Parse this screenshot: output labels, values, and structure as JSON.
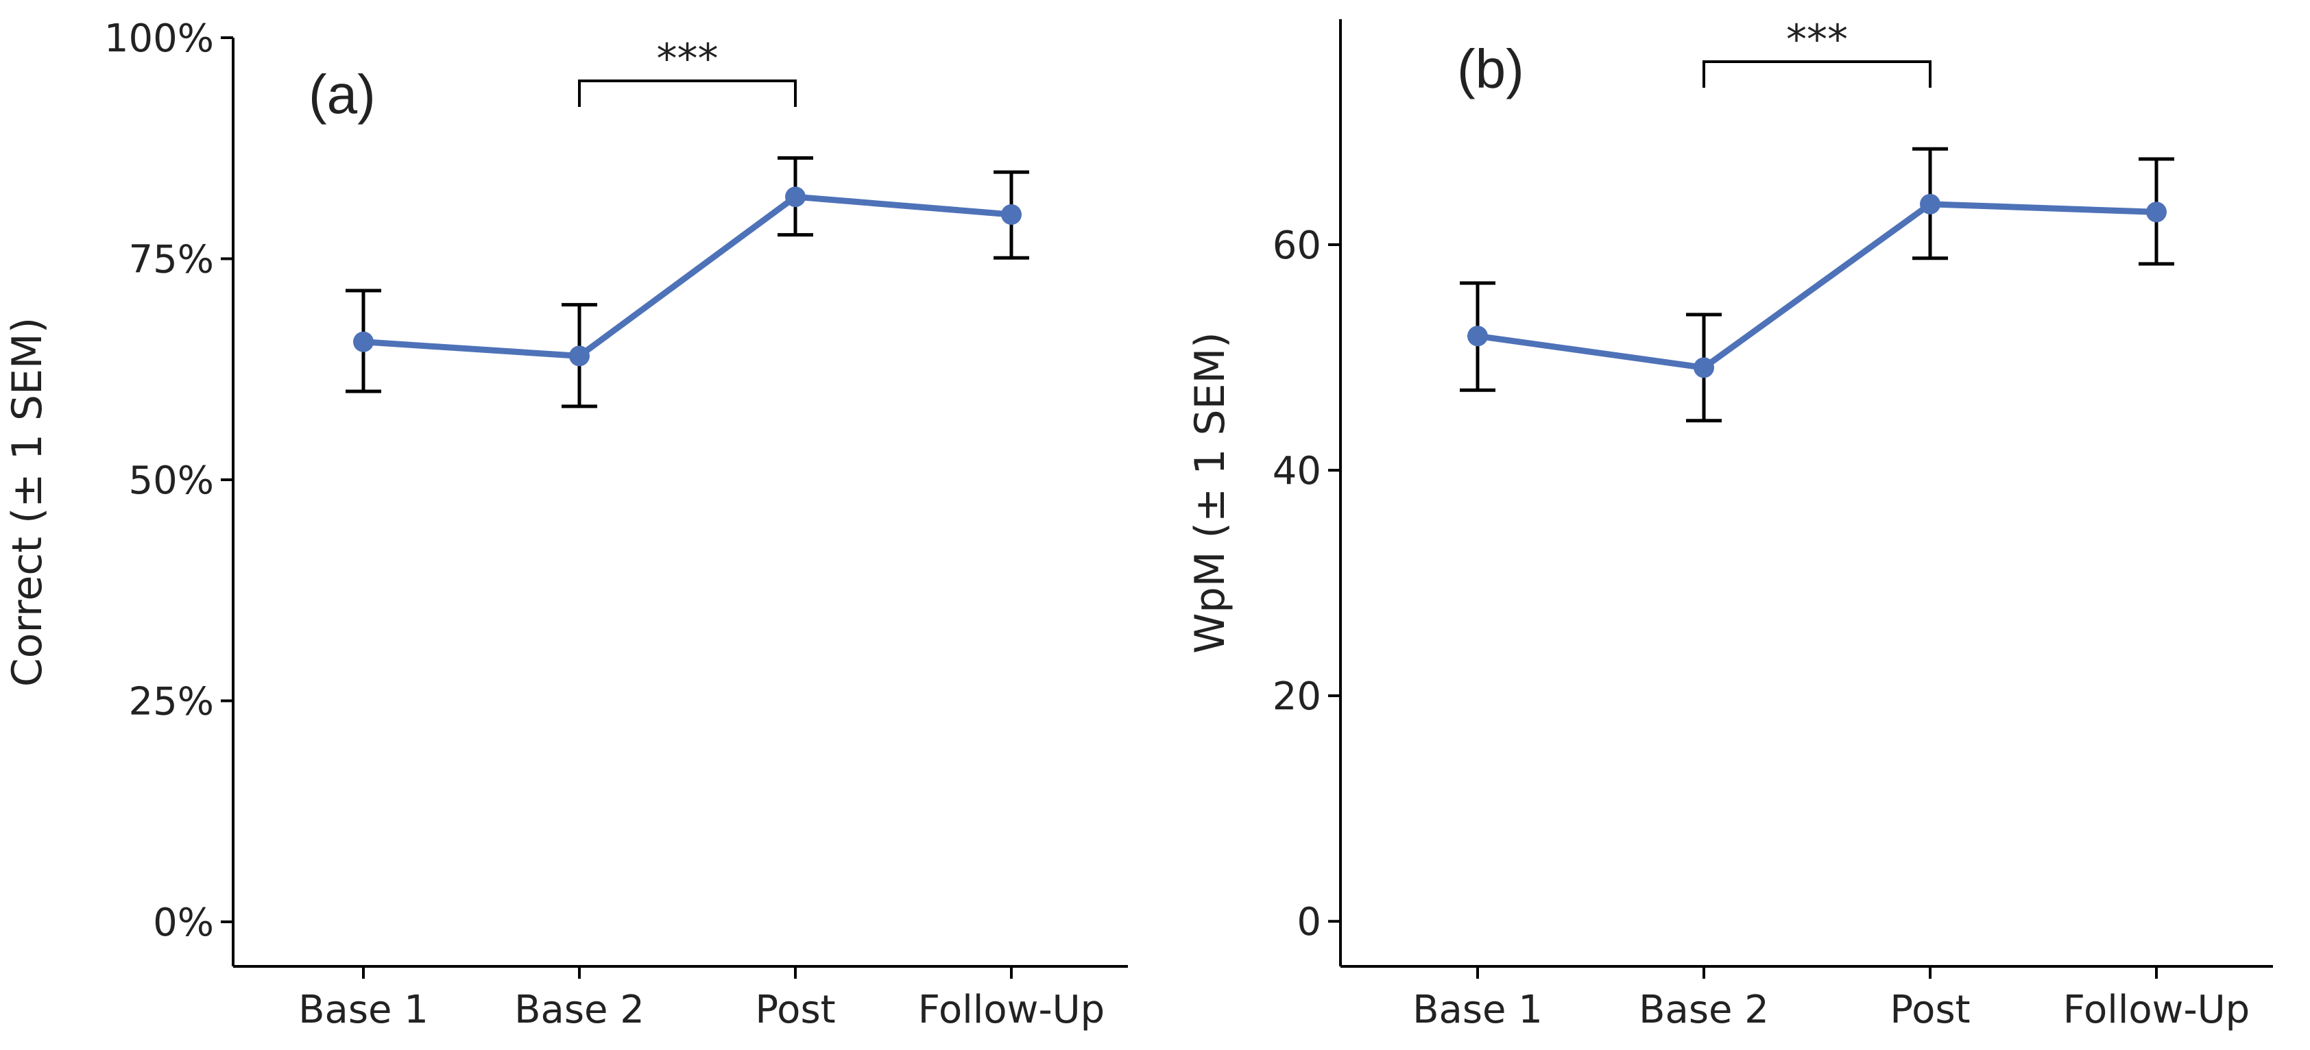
{
  "chart_data": [
    {
      "type": "line",
      "panel_label": "(a)",
      "title": "",
      "xlabel": "",
      "ylabel": "Correct (± 1 SEM)",
      "categories": [
        "Base 1",
        "Base 2",
        "Post",
        "Follow-Up"
      ],
      "ylim": [
        0,
        100
      ],
      "yticks": [
        0,
        25,
        50,
        75,
        100
      ],
      "ytick_labels": [
        "0%",
        "25%",
        "50%",
        "75%",
        "100%"
      ],
      "series": [
        {
          "name": "Correct",
          "color": "#4E72B8",
          "values": [
            65.6,
            64.0,
            82.0,
            80.0
          ],
          "err_low": [
            60.0,
            58.3,
            77.7,
            75.1
          ],
          "err_high": [
            71.4,
            69.8,
            86.4,
            84.8
          ]
        }
      ],
      "significance": {
        "from": "Base 2",
        "to": "Post",
        "label": "***"
      }
    },
    {
      "type": "line",
      "panel_label": "(b)",
      "title": "",
      "xlabel": "",
      "ylabel": "WpM (± 1 SEM)",
      "categories": [
        "Base 1",
        "Base 2",
        "Post",
        "Follow-Up"
      ],
      "ylim": [
        -4,
        80
      ],
      "yticks": [
        0,
        20,
        40,
        60
      ],
      "ytick_labels": [
        "0",
        "20",
        "40",
        "60"
      ],
      "series": [
        {
          "name": "WpM",
          "color": "#4E72B8",
          "values": [
            51.9,
            49.1,
            63.6,
            62.9
          ],
          "err_low": [
            47.1,
            44.4,
            58.8,
            58.3
          ],
          "err_high": [
            56.6,
            53.8,
            68.5,
            67.6
          ]
        }
      ],
      "significance": {
        "from": "Base 2",
        "to": "Post",
        "label": "***"
      }
    }
  ]
}
